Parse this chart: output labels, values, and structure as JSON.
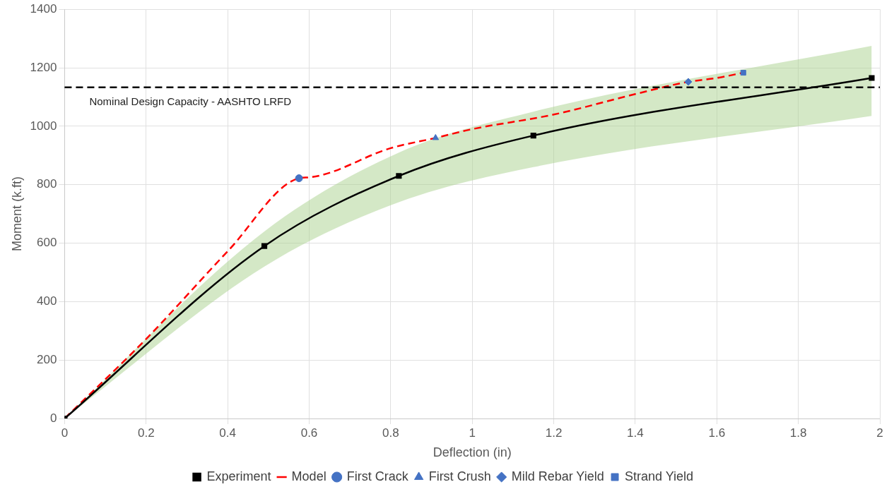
{
  "chart_data": {
    "type": "line",
    "xlabel": "Deflection (in)",
    "ylabel": "Moment (k.ft)",
    "xlim": [
      0,
      2
    ],
    "xticks": [
      0,
      0.2,
      0.4,
      0.6,
      0.8,
      1,
      1.2,
      1.4,
      1.6,
      1.8,
      2
    ],
    "ylim": [
      0,
      1400
    ],
    "yticks": [
      0,
      200,
      400,
      600,
      800,
      1000,
      1200,
      1400
    ],
    "grid": true,
    "legend": "bottom",
    "series": [
      {
        "name": "Experiment",
        "color": "#000000",
        "marker": "square",
        "line_style": "solid",
        "x": [
          0,
          0.49,
          0.82,
          1.15,
          1.98
        ],
        "values": [
          0,
          590,
          830,
          968,
          1165
        ],
        "lower": [
          0,
          520,
          740,
          860,
          1035
        ],
        "upper": [
          0,
          640,
          910,
          1050,
          1275
        ]
      },
      {
        "name": "Model",
        "color": "#ff0000",
        "marker": "none",
        "line_style": "dashed",
        "x": [
          0,
          0.2,
          0.4,
          0.575,
          0.6,
          0.8,
          0.91,
          1,
          1.2,
          1.4,
          1.53,
          1.6,
          1.665
        ],
        "values": [
          0,
          272,
          572,
          822,
          825,
          925,
          960,
          990,
          1040,
          1110,
          1152,
          1165,
          1183
        ]
      },
      {
        "name": "First Crack",
        "type": "scatter",
        "color": "#4472c4",
        "marker": "circle",
        "x": [
          0.575
        ],
        "values": [
          822
        ]
      },
      {
        "name": "First Crush",
        "type": "scatter",
        "color": "#4472c4",
        "marker": "triangle",
        "x": [
          0.91
        ],
        "values": [
          960
        ]
      },
      {
        "name": "Mild Rebar Yield",
        "type": "scatter",
        "color": "#4472c4",
        "marker": "diamond",
        "x": [
          1.53
        ],
        "values": [
          1152
        ]
      },
      {
        "name": "Strand Yield",
        "type": "scatter",
        "color": "#4472c4",
        "marker": "square",
        "x": [
          1.665
        ],
        "values": [
          1183
        ]
      }
    ],
    "ref_lines": [
      {
        "axis": "y",
        "value": 1133,
        "label": "Nominal Design Capacity - AASHTO LRFD",
        "color": "#000000",
        "line_style": "dashed"
      }
    ]
  }
}
